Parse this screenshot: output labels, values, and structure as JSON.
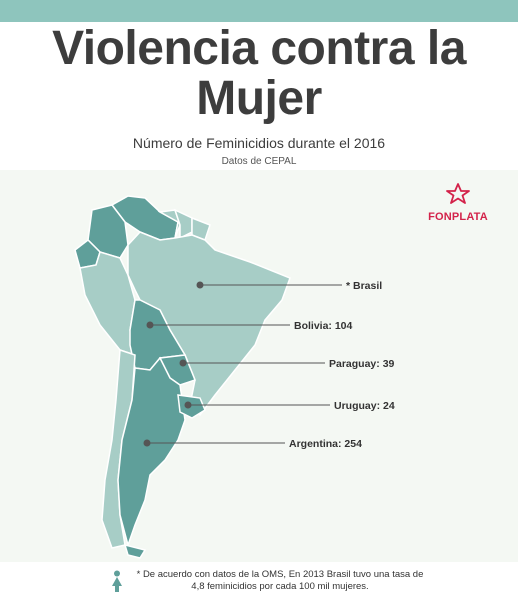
{
  "header": {
    "title_line1": "Violencia contra la",
    "title_line2": "Mujer",
    "subtitle": "Número de Feminicidios durante el 2016",
    "source": "Datos de CEPAL"
  },
  "logo": {
    "text": "FONPLATA",
    "icon": "star-icon"
  },
  "colors": {
    "band": "#8ec5bd",
    "highlighted_country": "#5f9f9a",
    "other_country": "#a7cdc6",
    "background": "#f4f8f3",
    "brand": "#d3234a"
  },
  "countries": [
    {
      "name": "Brasil",
      "label": "* Brasil"
    },
    {
      "name": "Bolivia",
      "label": "Bolivia: 104",
      "value": 104
    },
    {
      "name": "Paraguay",
      "label": "Paraguay: 39",
      "value": 39
    },
    {
      "name": "Uruguay",
      "label": "Uruguay: 24",
      "value": 24
    },
    {
      "name": "Argentina",
      "label": "Argentina: 254",
      "value": 254
    }
  ],
  "footnote": {
    "line1": "* De acuerdo con datos de la OMS, En 2013 Brasil tuvo una tasa de",
    "line2": "4,8 feminicidios por cada 100 mil mujeres.",
    "icon": "woman-icon"
  }
}
